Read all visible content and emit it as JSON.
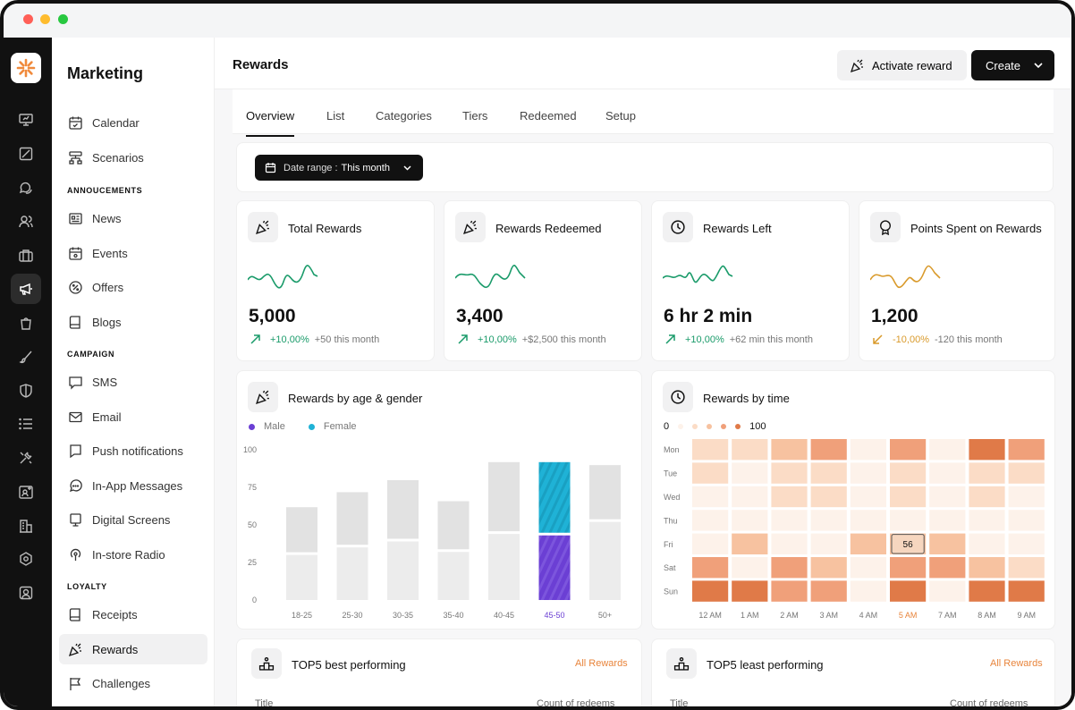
{
  "sidebar": {
    "title": "Marketing",
    "items_top": [
      {
        "label": "Calendar",
        "icon": "calendar-icon"
      },
      {
        "label": "Scenarios",
        "icon": "scenarios-icon"
      }
    ],
    "section_announcements": "ANNOUCEMENTS",
    "items_announcements": [
      {
        "label": "News",
        "icon": "news-icon"
      },
      {
        "label": "Events",
        "icon": "events-icon"
      },
      {
        "label": "Offers",
        "icon": "offers-icon"
      },
      {
        "label": "Blogs",
        "icon": "blogs-icon"
      }
    ],
    "section_campaign": "CAMPAIGN",
    "items_campaign": [
      {
        "label": "SMS",
        "icon": "sms-icon"
      },
      {
        "label": "Email",
        "icon": "email-icon"
      },
      {
        "label": "Push notifications",
        "icon": "push-icon"
      },
      {
        "label": "In-App Messages",
        "icon": "in-app-icon"
      },
      {
        "label": "Digital Screens",
        "icon": "screen-icon"
      },
      {
        "label": "In-store Radio",
        "icon": "radio-icon"
      }
    ],
    "section_loyalty": "LOYALTY",
    "items_loyalty": [
      {
        "label": "Receipts",
        "icon": "receipt-icon"
      },
      {
        "label": "Rewards",
        "icon": "party-popper-icon",
        "active": true
      },
      {
        "label": "Challenges",
        "icon": "flag-icon"
      }
    ]
  },
  "header": {
    "title": "Rewards",
    "activate_label": "Activate reward",
    "create_label": "Create"
  },
  "tabs": [
    "Overview",
    "List",
    "Categories",
    "Tiers",
    "Redeemed",
    "Setup"
  ],
  "active_tab": "Overview",
  "filter": {
    "date_label": "Date range :",
    "date_value": "This month"
  },
  "kpis": [
    {
      "title": "Total Rewards",
      "value": "5,000",
      "pct": "+10,00%",
      "note": "+50 this month",
      "trend": "up",
      "icon": "party-popper-icon",
      "color": "#1a9b6a"
    },
    {
      "title": "Rewards Redeemed",
      "value": "3,400",
      "pct": "+10,00%",
      "note": "+$2,500 this month",
      "trend": "up",
      "icon": "party-popper-icon",
      "color": "#1a9b6a"
    },
    {
      "title": "Rewards Left",
      "value": "6 hr 2 min",
      "pct": "+10,00%",
      "note": "+62 min this month",
      "trend": "up",
      "icon": "clock-icon",
      "color": "#1a9b6a"
    },
    {
      "title": "Points Spent on Rewards",
      "value": "1,200",
      "pct": "-10,00%",
      "note": "-120 this month",
      "trend": "down",
      "icon": "award-icon",
      "color": "#d99a2b"
    }
  ],
  "age_gender": {
    "title": "Rewards by age & gender",
    "legend": [
      {
        "label": "Male",
        "color": "#6b3fd4"
      },
      {
        "label": "Female",
        "color": "#1fb2d6"
      }
    ],
    "highlight_color_male": "#6b3fd4",
    "highlight_color_female": "#1fb2d6"
  },
  "by_time": {
    "title": "Rewards by time",
    "scale_min": "0",
    "scale_max": "100",
    "highlight_cell": "56",
    "colors": [
      "#fdf2ea",
      "#fbdcc6",
      "#f7c2a0",
      "#f0a07a",
      "#e07a48"
    ]
  },
  "chart_data": [
    {
      "type": "bar",
      "title": "Rewards by age & gender",
      "categories": [
        "18-25",
        "25-30",
        "30-35",
        "35-40",
        "40-45",
        "45-50",
        "50+"
      ],
      "highlight_category": "45-50",
      "ylim": [
        0,
        100
      ],
      "yticks": [
        "0",
        "25",
        "50",
        "75",
        "100"
      ],
      "series": [
        {
          "name": "Male",
          "values": [
            30,
            35,
            39,
            32,
            44,
            43,
            52
          ]
        },
        {
          "name": "Female",
          "values": [
            30,
            35,
            39,
            32,
            46,
            47,
            36
          ]
        }
      ]
    },
    {
      "type": "heatmap",
      "title": "Rewards by time",
      "x": [
        "12 AM",
        "1 AM",
        "2 AM",
        "3 AM",
        "4 AM",
        "5 AM",
        "7 AM",
        "8 AM",
        "9 AM"
      ],
      "y": [
        "Mon",
        "Tue",
        "Wed",
        "Thu",
        "Fri",
        "Sat",
        "Sun"
      ],
      "highlight_x": "5 AM",
      "range": [
        0,
        100
      ],
      "levels": [
        [
          1,
          1,
          2,
          3,
          0,
          3,
          0,
          4,
          3
        ],
        [
          1,
          0,
          1,
          1,
          0,
          1,
          0,
          1,
          1
        ],
        [
          0,
          0,
          1,
          1,
          0,
          1,
          0,
          1,
          0
        ],
        [
          0,
          0,
          0,
          0,
          0,
          0,
          0,
          0,
          0
        ],
        [
          0,
          2,
          0,
          0,
          2,
          2,
          2,
          0,
          0
        ],
        [
          3,
          0,
          3,
          2,
          0,
          3,
          3,
          2,
          1
        ],
        [
          4,
          4,
          3,
          3,
          0,
          4,
          0,
          4,
          4
        ]
      ]
    }
  ],
  "top5_best": {
    "title": "TOP5 best performing",
    "link": "All Rewards",
    "col1": "Title",
    "col2": "Count of redeems"
  },
  "top5_least": {
    "title": "TOP5 least performing",
    "link": "All Rewards",
    "col1": "Title",
    "col2": "Count of redeems"
  }
}
